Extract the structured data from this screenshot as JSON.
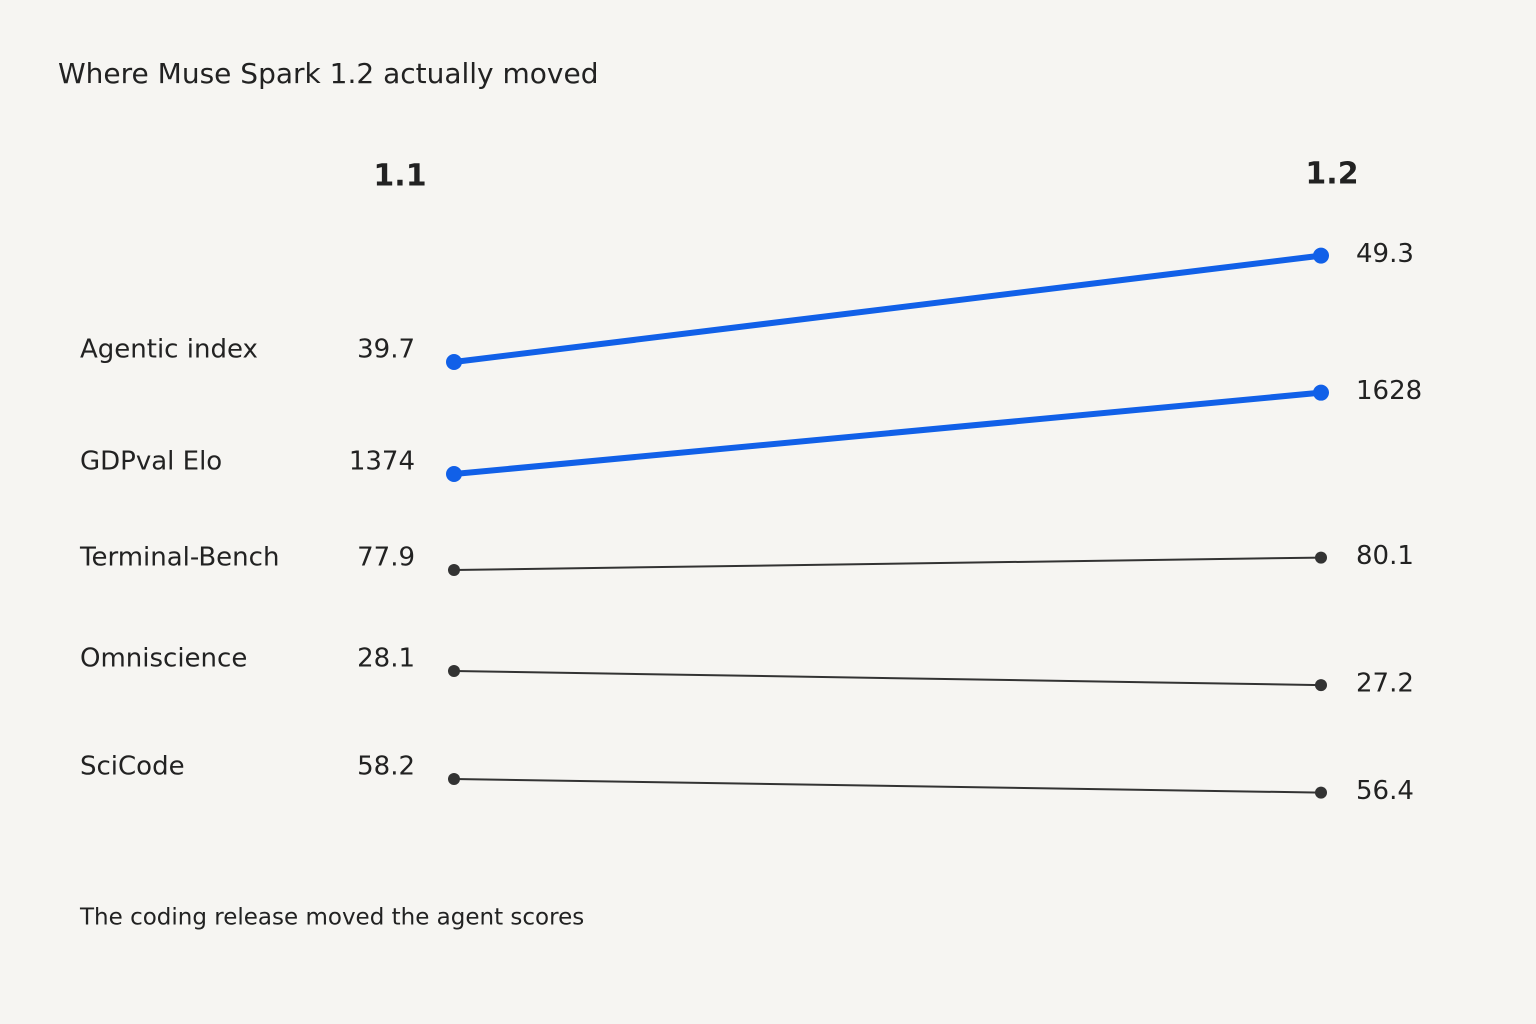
{
  "chart_data": {
    "type": "slope",
    "title": "Where Muse Spark 1.2 actually moved",
    "columns": [
      "1.1",
      "1.2"
    ],
    "series": [
      {
        "name": "Agentic index",
        "values": [
          39.7,
          49.3
        ],
        "color": "#1160e8",
        "highlight": true
      },
      {
        "name": "GDPval Elo",
        "values": [
          1374,
          1628
        ],
        "color": "#1160e8",
        "highlight": true
      },
      {
        "name": "Terminal-Bench",
        "values": [
          77.9,
          80.1
        ],
        "color": "#333333",
        "highlight": false
      },
      {
        "name": "Omniscience",
        "values": [
          28.1,
          27.2
        ],
        "color": "#333333",
        "highlight": false
      },
      {
        "name": "SciCode",
        "values": [
          58.2,
          56.4
        ],
        "color": "#333333",
        "highlight": false
      }
    ],
    "note": "The coding release moved the agent scores"
  }
}
